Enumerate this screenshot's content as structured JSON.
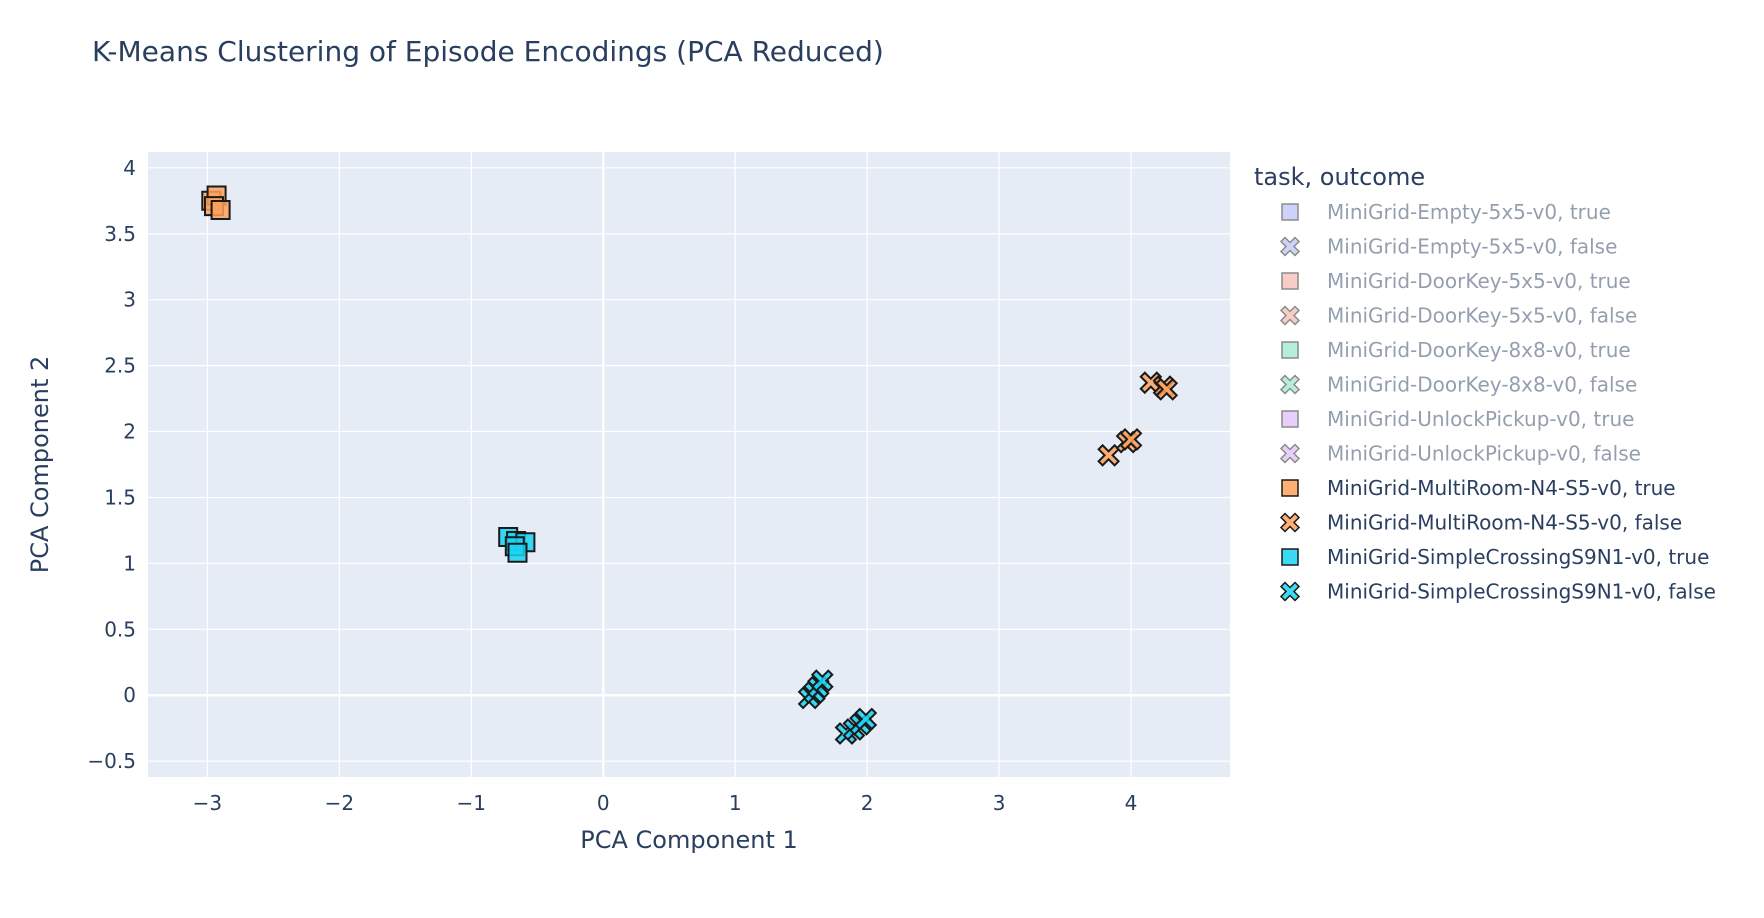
{
  "chart_data": {
    "type": "scatter",
    "title": "K-Means Clustering of Episode Encodings (PCA Reduced)",
    "xlabel": "PCA Component 1",
    "ylabel": "PCA Component 2",
    "xlim": [
      -3.45,
      4.75
    ],
    "ylim": [
      -0.62,
      4.12
    ],
    "xticks": [
      -3,
      -2,
      -1,
      0,
      1,
      2,
      3,
      4
    ],
    "yticks": [
      -0.5,
      0,
      0.5,
      1,
      1.5,
      2,
      2.5,
      3,
      3.5,
      4
    ],
    "grid": true,
    "legend_title": "task, outcome",
    "legend_position": "right",
    "series": [
      {
        "name": "MiniGrid-Empty-5x5-v0, true",
        "symbol": "square",
        "color": "#8e98f2",
        "visible": false,
        "points": []
      },
      {
        "name": "MiniGrid-Empty-5x5-v0, false",
        "symbol": "x",
        "color": "#8e98f2",
        "visible": false,
        "points": []
      },
      {
        "name": "MiniGrid-DoorKey-5x5-v0, true",
        "symbol": "square",
        "color": "#ef8a7a",
        "visible": false,
        "points": []
      },
      {
        "name": "MiniGrid-DoorKey-5x5-v0, false",
        "symbol": "x",
        "color": "#ef8a7a",
        "visible": false,
        "points": []
      },
      {
        "name": "MiniGrid-DoorKey-8x8-v0, true",
        "symbol": "square",
        "color": "#4fd8ad",
        "visible": false,
        "points": []
      },
      {
        "name": "MiniGrid-DoorKey-8x8-v0, false",
        "symbol": "x",
        "color": "#4fd8ad",
        "visible": false,
        "points": []
      },
      {
        "name": "MiniGrid-UnlockPickup-v0, true",
        "symbol": "square",
        "color": "#c98ef6",
        "visible": false,
        "points": []
      },
      {
        "name": "MiniGrid-UnlockPickup-v0, false",
        "symbol": "x",
        "color": "#c98ef6",
        "visible": false,
        "points": []
      },
      {
        "name": "MiniGrid-MultiRoom-N4-S5-v0, true",
        "symbol": "square",
        "color": "#ffa15a",
        "visible": true,
        "points": [
          [
            -2.97,
            3.75
          ],
          [
            -2.93,
            3.79
          ],
          [
            -2.95,
            3.71
          ],
          [
            -2.9,
            3.68
          ]
        ]
      },
      {
        "name": "MiniGrid-MultiRoom-N4-S5-v0, false",
        "symbol": "x",
        "color": "#ffa15a",
        "visible": true,
        "points": [
          [
            3.83,
            1.82
          ],
          [
            3.97,
            1.92
          ],
          [
            4.0,
            1.94
          ],
          [
            4.15,
            2.37
          ],
          [
            4.25,
            2.34
          ],
          [
            4.27,
            2.32
          ]
        ]
      },
      {
        "name": "MiniGrid-SimpleCrossingS9N1-v0, true",
        "symbol": "square",
        "color": "#19d3f3",
        "visible": true,
        "points": [
          [
            -0.72,
            1.2
          ],
          [
            -0.66,
            1.17
          ],
          [
            -0.59,
            1.16
          ],
          [
            -0.67,
            1.13
          ],
          [
            -0.65,
            1.08
          ]
        ]
      },
      {
        "name": "MiniGrid-SimpleCrossingS9N1-v0, false",
        "symbol": "x",
        "color": "#19d3f3",
        "visible": true,
        "points": [
          [
            1.56,
            -0.02
          ],
          [
            1.6,
            0.02
          ],
          [
            1.63,
            0.06
          ],
          [
            1.66,
            0.11
          ],
          [
            1.84,
            -0.29
          ],
          [
            1.9,
            -0.26
          ],
          [
            1.95,
            -0.22
          ],
          [
            1.99,
            -0.18
          ]
        ]
      }
    ]
  }
}
